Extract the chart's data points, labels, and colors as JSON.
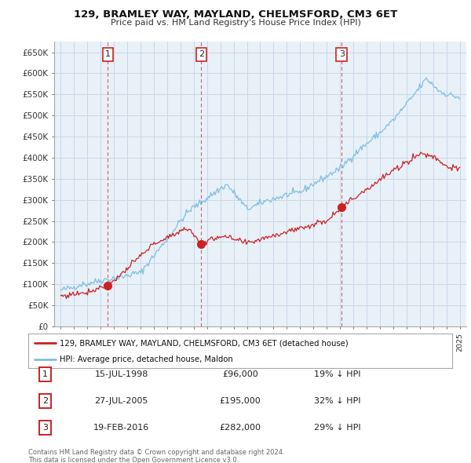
{
  "title": "129, BRAMLEY WAY, MAYLAND, CHELMSFORD, CM3 6ET",
  "subtitle": "Price paid vs. HM Land Registry's House Price Index (HPI)",
  "ylabel_ticks": [
    "£0",
    "£50K",
    "£100K",
    "£150K",
    "£200K",
    "£250K",
    "£300K",
    "£350K",
    "£400K",
    "£450K",
    "£500K",
    "£550K",
    "£600K",
    "£650K"
  ],
  "ytick_values": [
    0,
    50000,
    100000,
    150000,
    200000,
    250000,
    300000,
    350000,
    400000,
    450000,
    500000,
    550000,
    600000,
    650000
  ],
  "hpi_color": "#7fbfdf",
  "price_color": "#cc2222",
  "sale_marker_color": "#cc2222",
  "sale_dates_num": [
    1998.54,
    2005.57,
    2016.13
  ],
  "sale_prices": [
    96000,
    195000,
    282000
  ],
  "sale_labels": [
    "1",
    "2",
    "3"
  ],
  "legend_label_price": "129, BRAMLEY WAY, MAYLAND, CHELMSFORD, CM3 6ET (detached house)",
  "legend_label_hpi": "HPI: Average price, detached house, Maldon",
  "table_data": [
    [
      "1",
      "15-JUL-1998",
      "£96,000",
      "19% ↓ HPI"
    ],
    [
      "2",
      "27-JUL-2005",
      "£195,000",
      "32% ↓ HPI"
    ],
    [
      "3",
      "19-FEB-2016",
      "£282,000",
      "29% ↓ HPI"
    ]
  ],
  "footnote1": "Contains HM Land Registry data © Crown copyright and database right 2024.",
  "footnote2": "This data is licensed under the Open Government Licence v3.0.",
  "chart_bg_color": "#e8f0f8",
  "background_color": "#ffffff",
  "grid_color": "#c8d8e8",
  "xlim": [
    1994.5,
    2025.5
  ],
  "ylim": [
    0,
    675000
  ]
}
